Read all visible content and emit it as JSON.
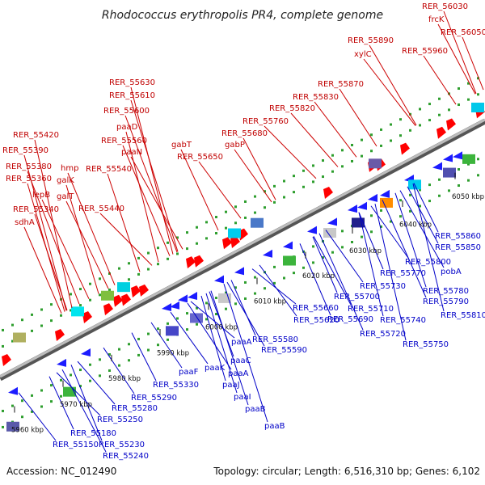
{
  "title": "Rhodococcus erythropolis PR4, complete genome",
  "footer": {
    "accession": "Accession: NC_012490",
    "summary": "Topology: circular; Length: 6,516,310 bp; Genes: 6,102"
  },
  "colors": {
    "forward": "#ff0000",
    "reverse": "#1c1cff",
    "forward_leader": "#cc0000",
    "reverse_leader": "#0000c8",
    "backbone": "#8a8a8a",
    "track_dots": "#2e9e2e"
  },
  "ticks": [
    "5960 kbp",
    "5970 kbp",
    "5980 kbp",
    "5990 kbp",
    "6000 kbp",
    "6010 kbp",
    "6020 kbp",
    "6030 kbp",
    "6040 kbp",
    "6050 kbp"
  ],
  "forward_labels": [
    "RER_56030",
    "frcK",
    "RER_56050",
    "RER_55890",
    "xylC",
    "RER_55960",
    "RER_55870",
    "RER_55830",
    "RER_55820",
    "RER_55760",
    "RER_55680",
    "gabP",
    "RER_55630",
    "RER_55610",
    "RER_55600",
    "paaD",
    "gabT",
    "RER_55650",
    "RER_55560",
    "paaN",
    "RER_55540",
    "RER_55420",
    "RER_55390",
    "hmp",
    "RER_55380",
    "galK",
    "RER_55360",
    "galT",
    "lepB",
    "RER_55440",
    "RER_55340",
    "sdhA"
  ],
  "reverse_labels": [
    "RER_55860",
    "RER_55850",
    "RER_55800",
    "pobA",
    "RER_55770",
    "RER_55780",
    "RER_55730",
    "RER_55790",
    "RER_55700",
    "RER_55810",
    "RER_55710",
    "RER_55660",
    "RER_55740",
    "RER_55690",
    "RER_55620",
    "RER_55720",
    "RER_55580",
    "RER_55750",
    "RER_55590",
    "paaA",
    "paaC",
    "paaF",
    "paaK",
    "paaA",
    "paaJ",
    "paaI",
    "paaB",
    "paaB",
    "RER_55330",
    "RER_55290",
    "RER_55280",
    "RER_55250",
    "RER_55180",
    "RER_55230",
    "RER_55150",
    "RER_55240"
  ]
}
